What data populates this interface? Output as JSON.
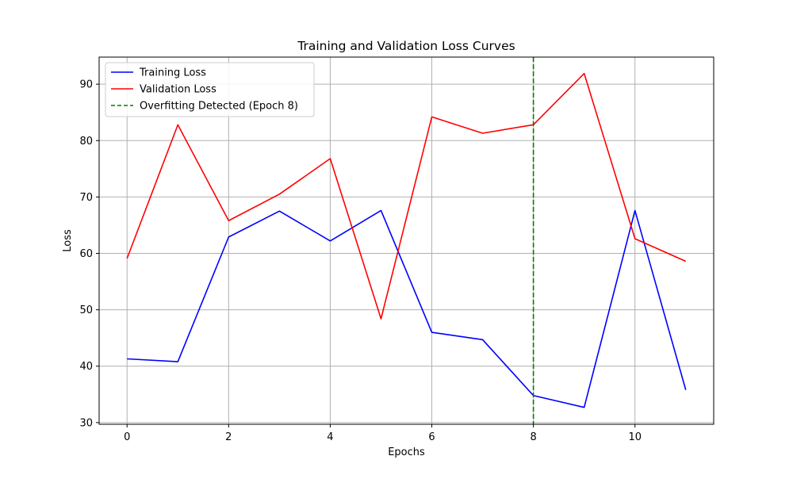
{
  "chart_data": {
    "type": "line",
    "title": "Training and Validation Loss Curves",
    "xlabel": "Epochs",
    "ylabel": "Loss",
    "x": [
      0,
      1,
      2,
      3,
      4,
      5,
      6,
      7,
      8,
      9,
      10,
      11
    ],
    "xlim": [
      -0.55,
      11.55
    ],
    "ylim": [
      29.7,
      94.8
    ],
    "x_ticks": [
      0,
      2,
      4,
      6,
      8,
      10
    ],
    "y_ticks": [
      30,
      40,
      50,
      60,
      70,
      80,
      90
    ],
    "grid": true,
    "legend_position": "upper left",
    "series": [
      {
        "name": "Training Loss",
        "color": "#0000ff",
        "style": "solid",
        "values": [
          41.3,
          40.8,
          62.9,
          67.5,
          62.2,
          67.6,
          46.0,
          44.7,
          34.8,
          32.7,
          67.6,
          35.8
        ]
      },
      {
        "name": "Validation Loss",
        "color": "#ff0000",
        "style": "solid",
        "values": [
          59.1,
          82.8,
          65.8,
          70.5,
          76.8,
          48.4,
          84.2,
          81.3,
          82.8,
          91.9,
          62.6,
          58.6
        ]
      }
    ],
    "vlines": [
      {
        "name": "Overfitting Detected (Epoch 8)",
        "x": 8,
        "color": "#008000",
        "style": "dashed"
      }
    ]
  }
}
